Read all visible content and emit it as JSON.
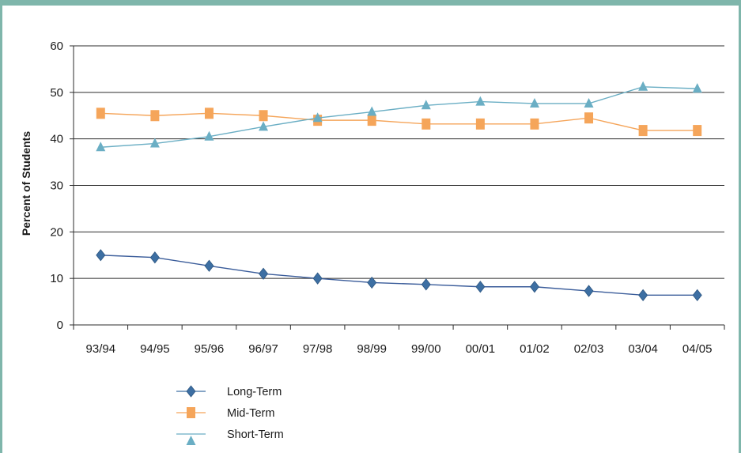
{
  "chart_data": {
    "type": "line",
    "ylabel": "Percent of Students",
    "xlabel": "",
    "ylim": [
      0,
      60
    ],
    "yticks": [
      "0",
      "10",
      "20",
      "30",
      "40",
      "50",
      "60"
    ],
    "categories": [
      "93/94",
      "94/95",
      "95/96",
      "96/97",
      "97/98",
      "98/99",
      "99/00",
      "00/01",
      "01/02",
      "02/03",
      "03/04",
      "04/05"
    ],
    "grid": "horizontal",
    "legend": "bottom-left",
    "series": [
      {
        "name": "Long-Term",
        "marker": "diamond",
        "color": "#3d6fa3",
        "values": [
          15.0,
          14.5,
          12.7,
          11.0,
          10.0,
          9.1,
          8.7,
          8.2,
          8.2,
          7.3,
          6.4,
          6.4
        ]
      },
      {
        "name": "Mid-Term",
        "marker": "square",
        "color": "#f5a55a",
        "values": [
          45.5,
          45.0,
          45.5,
          45.0,
          44.0,
          44.0,
          43.2,
          43.2,
          43.2,
          44.5,
          41.8,
          41.8
        ]
      },
      {
        "name": "Short-Term",
        "marker": "triangle",
        "color": "#6aaec4",
        "values": [
          38.2,
          39.0,
          40.5,
          42.6,
          44.5,
          45.8,
          47.2,
          48.0,
          47.6,
          47.6,
          51.2,
          50.8
        ]
      }
    ]
  }
}
